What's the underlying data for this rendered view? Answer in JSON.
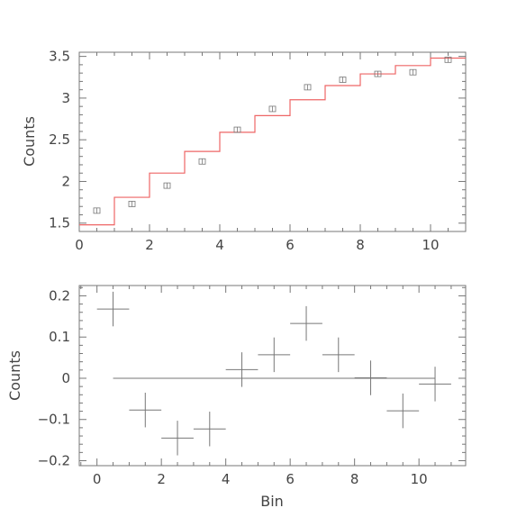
{
  "chart_data": [
    {
      "type": "line",
      "ylabel": "Counts",
      "xlabel": "",
      "xlim": [
        0,
        11
      ],
      "ylim": [
        1.4,
        3.55
      ],
      "x_ticks": [
        0,
        2,
        4,
        6,
        8,
        10
      ],
      "y_ticks": [
        1.5,
        2,
        2.5,
        3,
        3.5
      ],
      "x_tick_labels": [
        "0",
        "2",
        "4",
        "6",
        "8",
        "10"
      ],
      "y_tick_labels": [
        "1.5",
        "2",
        "2.5",
        "3",
        "3.5"
      ],
      "series": [
        {
          "kind": "step-model",
          "color": "#ee6666",
          "bin_edges": [
            0,
            1,
            2,
            3,
            4,
            5,
            6,
            7,
            8,
            9,
            10,
            11
          ],
          "values": [
            1.48,
            1.81,
            2.1,
            2.36,
            2.59,
            2.79,
            2.98,
            3.15,
            3.29,
            3.39,
            3.48
          ]
        },
        {
          "kind": "data-points",
          "marker": "square",
          "x": [
            0.5,
            1.5,
            2.5,
            3.5,
            4.5,
            5.5,
            6.5,
            7.5,
            8.5,
            9.5,
            10.5
          ],
          "y": [
            1.65,
            1.73,
            1.95,
            2.24,
            2.62,
            2.87,
            3.13,
            3.22,
            3.29,
            3.31,
            3.46
          ]
        }
      ]
    },
    {
      "type": "scatter",
      "ylabel": "Counts",
      "xlabel": "Bin",
      "xlim": [
        -0.55,
        11.45
      ],
      "ylim": [
        -0.212,
        0.225
      ],
      "x_ticks": [
        0,
        2,
        4,
        6,
        8,
        10
      ],
      "y_ticks": [
        -0.2,
        -0.1,
        0,
        0.1,
        0.2
      ],
      "x_tick_labels": [
        "0",
        "2",
        "4",
        "6",
        "8",
        "10"
      ],
      "y_tick_labels": [
        "−0.2",
        "−0.1",
        "0",
        "0.1",
        "0.2"
      ],
      "zero_line": {
        "x_start": 0.5,
        "x_end": 10.5,
        "y": 0
      },
      "series": [
        {
          "kind": "residuals-with-errorbars",
          "x": [
            0.5,
            1.5,
            2.5,
            3.5,
            4.5,
            5.5,
            6.5,
            7.5,
            8.5,
            9.5,
            10.5
          ],
          "y": [
            0.168,
            -0.077,
            -0.145,
            -0.123,
            0.021,
            0.057,
            0.133,
            0.057,
            0.001,
            -0.079,
            -0.014
          ],
          "xerr": 0.5,
          "yerr": 0.042
        }
      ]
    }
  ]
}
